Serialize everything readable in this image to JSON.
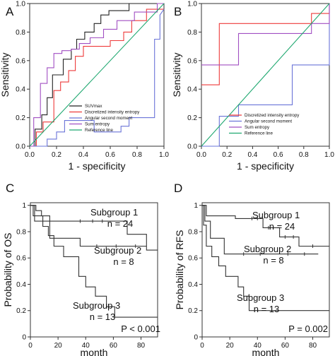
{
  "chart_data": [
    {
      "panel": "A",
      "type": "line",
      "xlabel": "1 - specificity",
      "ylabel": "Sensitivity",
      "xlim": [
        0,
        1
      ],
      "ylim": [
        0,
        1
      ],
      "xticks": [
        "0.0",
        "0.2",
        "0.4",
        "0.6",
        "0.8",
        "1.0"
      ],
      "yticks": [
        "0.0",
        "0.2",
        "0.4",
        "0.6",
        "0.8",
        "1.0"
      ],
      "legend_position": "bottom-right",
      "series": [
        {
          "name": "SUVmax",
          "color": "#222222",
          "x": [
            0,
            0.04,
            0.04,
            0.09,
            0.09,
            0.13,
            0.13,
            0.17,
            0.17,
            0.25,
            0.25,
            0.31,
            0.31,
            0.35,
            0.35,
            0.41,
            0.41,
            0.48,
            0.48,
            0.53,
            0.53,
            0.59,
            0.59,
            0.74,
            0.74,
            0.89,
            0.89,
            1.0
          ],
          "y": [
            0,
            0,
            0.12,
            0.12,
            0.22,
            0.22,
            0.34,
            0.34,
            0.5,
            0.5,
            0.61,
            0.61,
            0.68,
            0.68,
            0.75,
            0.75,
            0.8,
            0.8,
            0.86,
            0.86,
            0.92,
            0.92,
            0.95,
            0.95,
            1.0,
            1.0,
            1.0,
            1.0
          ]
        },
        {
          "name": "Discretized intensity entropy",
          "color": "#ee3a3a",
          "x": [
            0,
            0.05,
            0.05,
            0.1,
            0.1,
            0.18,
            0.18,
            0.23,
            0.23,
            0.29,
            0.29,
            0.34,
            0.34,
            0.4,
            0.4,
            0.6,
            0.6,
            0.7,
            0.7,
            0.76,
            0.76,
            0.87,
            0.87,
            1.0
          ],
          "y": [
            0,
            0,
            0.1,
            0.1,
            0.17,
            0.17,
            0.39,
            0.39,
            0.45,
            0.45,
            0.53,
            0.53,
            0.63,
            0.63,
            0.7,
            0.7,
            0.74,
            0.74,
            0.8,
            0.8,
            0.88,
            0.88,
            0.96,
            0.96
          ]
        },
        {
          "name": "Angular second moment",
          "color": "#6a74d8",
          "x": [
            0,
            0.13,
            0.13,
            0.2,
            0.2,
            0.26,
            0.26,
            0.48,
            0.48,
            0.68,
            0.68,
            0.74,
            0.74,
            0.93,
            0.93,
            0.97,
            0.97,
            1.0
          ],
          "y": [
            0,
            0,
            0.05,
            0.05,
            0.1,
            0.1,
            0.18,
            0.18,
            0.1,
            0.1,
            0.14,
            0.14,
            0.2,
            0.2,
            0.75,
            0.75,
            0.92,
            0.96
          ]
        },
        {
          "name": "Sum entropy",
          "color": "#a14fc2",
          "x": [
            0,
            0.03,
            0.03,
            0.08,
            0.08,
            0.13,
            0.13,
            0.18,
            0.18,
            0.24,
            0.24,
            0.31,
            0.31,
            0.37,
            0.37,
            0.45,
            0.45,
            0.55,
            0.55,
            0.65,
            0.65,
            0.78,
            0.78,
            0.95,
            0.95,
            1.0
          ],
          "y": [
            0,
            0,
            0.2,
            0.2,
            0.44,
            0.44,
            0.55,
            0.55,
            0.65,
            0.65,
            0.67,
            0.67,
            0.68,
            0.68,
            0.72,
            0.72,
            0.76,
            0.76,
            0.82,
            0.82,
            0.88,
            0.88,
            0.94,
            0.94,
            1.0,
            1.0
          ]
        },
        {
          "name": "Reference line",
          "color": "#1fa870",
          "x": [
            0,
            1
          ],
          "y": [
            0,
            1
          ]
        }
      ]
    },
    {
      "panel": "B",
      "type": "line",
      "xlabel": "1 - specificity",
      "ylabel": "Sensitivity",
      "xlim": [
        0,
        1
      ],
      "ylim": [
        0,
        1
      ],
      "xticks": [
        "0.0",
        "0.2",
        "0.4",
        "0.6",
        "0.8",
        "1.0"
      ],
      "yticks": [
        "0.0",
        "0.2",
        "0.4",
        "0.6",
        "0.8",
        "1.0"
      ],
      "legend_position": "bottom-right",
      "series": [
        {
          "name": "Discretized intensity entropy",
          "color": "#ee3a3a",
          "x": [
            0,
            0.14,
            0.14,
            0.86,
            0.86,
            1.0,
            1.0
          ],
          "y": [
            0.43,
            0.43,
            0.86,
            0.86,
            0.93,
            0.93,
            1.0
          ]
        },
        {
          "name": "Angular second moment",
          "color": "#6a74d8",
          "x": [
            0,
            0.14,
            0.14,
            0.29,
            0.29,
            0.71,
            0.71,
            1.0,
            1.0
          ],
          "y": [
            0,
            0,
            0.21,
            0.21,
            0.29,
            0.29,
            0.57,
            0.57,
            1.0
          ]
        },
        {
          "name": "Sum entropy",
          "color": "#a14fc2",
          "x": [
            0,
            0.14,
            0.14,
            0.29,
            0.29,
            0.86,
            0.86,
            1.0,
            1.0
          ],
          "y": [
            0.57,
            0.57,
            0.57,
            0.57,
            0.79,
            0.79,
            0.86,
            0.86,
            1.0
          ]
        },
        {
          "name": "Reference line",
          "color": "#1fa870",
          "x": [
            0,
            1
          ],
          "y": [
            0,
            1
          ]
        }
      ]
    },
    {
      "panel": "C",
      "type": "line",
      "xlabel": "month",
      "ylabel": "Probability of OS",
      "xlim": [
        0,
        92
      ],
      "ylim": [
        0,
        1.02
      ],
      "xticks": [
        "0",
        "20",
        "40",
        "60",
        "80"
      ],
      "yticks": [
        "0",
        "0.2",
        "0.4",
        "0.6",
        "0.8",
        "1"
      ],
      "pvalue": "P < 0.001",
      "series": [
        {
          "name": "Subgroup 1",
          "n": "n = 24",
          "color": "#333333",
          "x": [
            0,
            4,
            4,
            8,
            8,
            14,
            14,
            18,
            18,
            70,
            70,
            84,
            84,
            92
          ],
          "y": [
            1.0,
            1.0,
            0.96,
            0.96,
            0.92,
            0.92,
            0.88,
            0.88,
            0.88,
            0.88,
            0.78,
            0.78,
            0.66,
            0.66
          ],
          "censors_x": [
            36,
            45,
            52
          ],
          "censors_y": [
            0.88,
            0.88,
            0.88
          ]
        },
        {
          "name": "Subgroup 2",
          "n": "n = 8",
          "color": "#333333",
          "x": [
            0,
            3,
            3,
            14,
            14,
            36,
            36,
            84
          ],
          "y": [
            1.0,
            1.0,
            0.88,
            0.88,
            0.75,
            0.75,
            0.69,
            0.69
          ],
          "censors_x": [
            48,
            62,
            76
          ],
          "censors_y": [
            0.69,
            0.69,
            0.69
          ]
        },
        {
          "name": "Subgroup 3",
          "n": "n = 13",
          "color": "#333333",
          "x": [
            0,
            2,
            2,
            9,
            9,
            13,
            13,
            17,
            17,
            24,
            24,
            35,
            35,
            40,
            40,
            47,
            47,
            55,
            55,
            61,
            61,
            92
          ],
          "y": [
            1.0,
            1.0,
            0.92,
            0.92,
            0.84,
            0.84,
            0.77,
            0.77,
            0.69,
            0.69,
            0.61,
            0.61,
            0.46,
            0.46,
            0.38,
            0.38,
            0.31,
            0.31,
            0.23,
            0.23,
            0.15,
            0.15
          ]
        }
      ]
    },
    {
      "panel": "D",
      "type": "line",
      "xlabel": "month",
      "ylabel": "Probability of RFS",
      "xlim": [
        0,
        92
      ],
      "ylim": [
        0,
        1.02
      ],
      "xticks": [
        "0",
        "20",
        "40",
        "60",
        "80"
      ],
      "yticks": [
        "0",
        "0.2",
        "0.4",
        "0.6",
        "0.8",
        "1"
      ],
      "pvalue": "P = 0.002",
      "series": [
        {
          "name": "Subgroup 1",
          "n": "n = 24",
          "color": "#333333",
          "x": [
            0,
            3,
            3,
            6,
            6,
            24,
            24,
            44,
            44,
            56,
            56,
            70,
            70,
            92
          ],
          "y": [
            1.0,
            1.0,
            0.92,
            0.92,
            0.92,
            0.92,
            0.9,
            0.9,
            0.83,
            0.83,
            0.76,
            0.76,
            0.69,
            0.69
          ],
          "censors_x": [
            36,
            40,
            48,
            60,
            66,
            80
          ],
          "censors_y": [
            0.9,
            0.9,
            0.83,
            0.76,
            0.76,
            0.69
          ]
        },
        {
          "name": "Subgroup 2",
          "n": "n = 8",
          "color": "#333333",
          "x": [
            0,
            2,
            2,
            6,
            6,
            16,
            16,
            22,
            22,
            84
          ],
          "y": [
            1.0,
            1.0,
            0.88,
            0.88,
            0.75,
            0.75,
            0.63,
            0.63,
            0.63,
            0.63
          ],
          "censors_x": [
            30,
            42,
            62,
            74
          ],
          "censors_y": [
            0.63,
            0.63,
            0.63,
            0.63
          ]
        },
        {
          "name": "Subgroup 3",
          "n": "n = 13",
          "color": "#333333",
          "x": [
            0,
            1,
            1,
            3,
            3,
            7,
            7,
            12,
            12,
            17,
            17,
            26,
            26,
            30,
            30,
            34,
            34,
            70,
            70,
            92
          ],
          "y": [
            1.0,
            1.0,
            0.85,
            0.85,
            0.69,
            0.69,
            0.61,
            0.61,
            0.54,
            0.54,
            0.46,
            0.46,
            0.38,
            0.38,
            0.31,
            0.31,
            0.2,
            0.2,
            0.2,
            0.2
          ]
        }
      ]
    }
  ]
}
